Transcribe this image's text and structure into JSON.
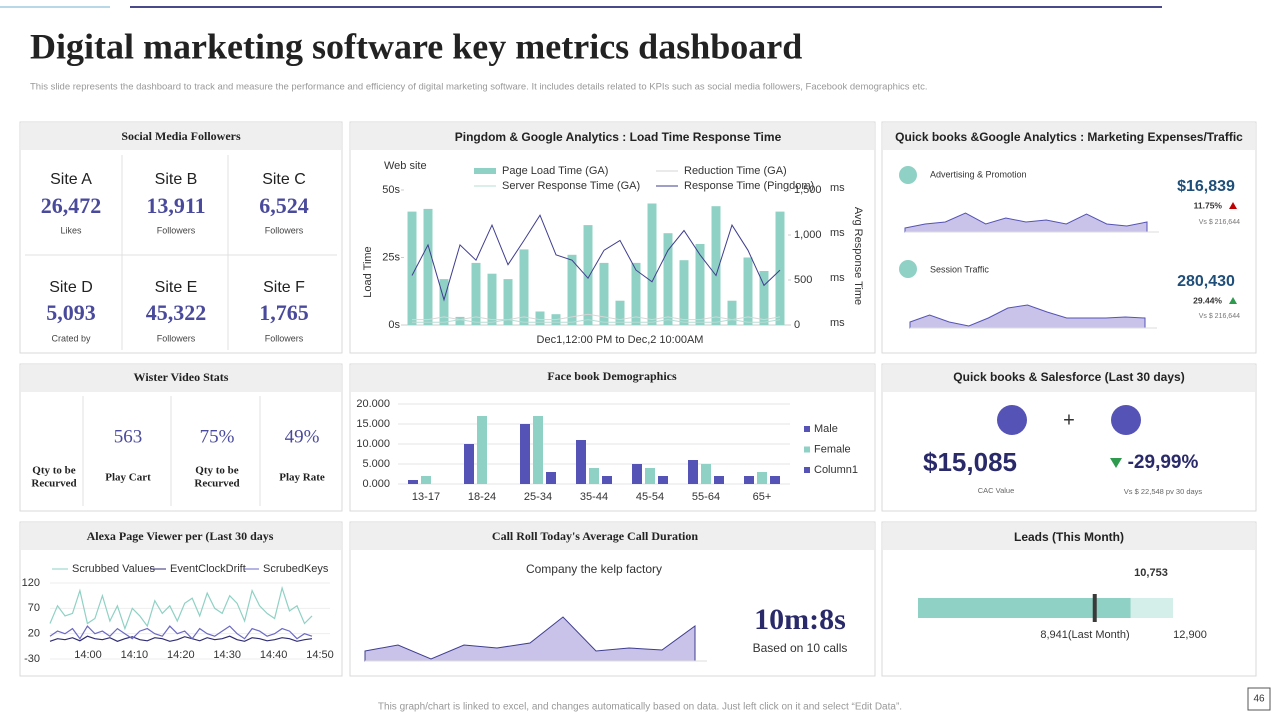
{
  "title": "Digital marketing software key metrics dashboard",
  "subtitle": "This slide represents the dashboard to track and measure the performance and efficiency of digital marketing software. It includes details related to KPIs such as social media followers, Facebook demographics etc.",
  "footer": "This graph/chart is linked to excel, and changes automatically based on data. Just left click on it and select “Edit Data”.",
  "page_number": "46",
  "social_media": {
    "title": "Social Media Followers",
    "sites": [
      {
        "name": "Site A",
        "value": "26,472",
        "metric": "Likes"
      },
      {
        "name": "Site B",
        "value": "13,911",
        "metric": "Followers"
      },
      {
        "name": "Site C",
        "value": "6,524",
        "metric": "Followers"
      },
      {
        "name": "Site D",
        "value": "5,093",
        "metric": "Crated by"
      },
      {
        "name": "Site E",
        "value": "45,322",
        "metric": "Followers"
      },
      {
        "name": "Site F",
        "value": "1,765",
        "metric": "Followers"
      }
    ]
  },
  "video_stats": {
    "title": "Wister Video Stats",
    "items": [
      {
        "label": [
          "Qty to be",
          "Recurved"
        ]
      },
      {
        "value": "563",
        "label": [
          "Play Cart"
        ]
      },
      {
        "value": "75%",
        "label": [
          "Qty to be",
          "Recurved"
        ]
      },
      {
        "value": "49%",
        "label": [
          "Play Rate"
        ]
      }
    ]
  },
  "quickbooks_traffic": {
    "title": "Quick books &Google  Analytics : Marketing Expenses/Traffic",
    "items": [
      {
        "name": "Advertising & Promotion",
        "value": "$16,839",
        "change": "11.75%",
        "compare": "Vs $ 216,644"
      },
      {
        "name": "Session Traffic",
        "value": "280,430",
        "change": "29.44%",
        "compare": "Vs $ 216,644"
      }
    ]
  },
  "salesforce": {
    "title": "Quick books & Salesforce (Last 30 days)",
    "plus": "+",
    "value": "$15,085",
    "value_caption": "CAC Value",
    "change": "-29,99%",
    "compare": "Vs $ 22,548  pv 30 days"
  },
  "call_stats": {
    "value": "10m:8s",
    "caption": "Based on 10 calls"
  },
  "chart_data": [
    {
      "type": "combo",
      "title": "Pingdom  & Google  Analytics : Load Time Response Time",
      "caption": "Web site",
      "ylabel": "Load Time",
      "y2label": "Avg Response Time",
      "xlabel": "Dec1,12:00 PM  to Dec,2 10:00AM",
      "ylim": [
        0,
        50
      ],
      "yticks": [
        {
          "value": 0,
          "label": "0s"
        },
        {
          "value": 25,
          "label": "25s"
        },
        {
          "value": 50,
          "label": "50s"
        }
      ],
      "y2lim": [
        0,
        1500
      ],
      "y2ticks": [
        0,
        500,
        {
          "value": 1000,
          "label": "1,000"
        },
        {
          "value": 1500,
          "label": "1,500"
        }
      ],
      "y2_unit": "ms",
      "series": [
        {
          "name": "Page Load Time (GA)",
          "type": "bar",
          "color": "#8fd1c4",
          "values": [
            42,
            43,
            17,
            3,
            23,
            19,
            17,
            28,
            5,
            4,
            26,
            37,
            23,
            9,
            23,
            45,
            34,
            24,
            30,
            44,
            9,
            25,
            20,
            42
          ]
        },
        {
          "name": "Reduction Time (GA)",
          "type": "line",
          "color": "#d6d6d6",
          "values": [
            2,
            2,
            3,
            2,
            3,
            2,
            2,
            3,
            2,
            2,
            3,
            4,
            3,
            2,
            3,
            2,
            3,
            2,
            2,
            3,
            2,
            3,
            2,
            3
          ]
        },
        {
          "name": "Server Response Time (GA)",
          "type": "line",
          "color": "#b5ddd5",
          "values": [
            1,
            1,
            1,
            2,
            1,
            1,
            2,
            1,
            1,
            1,
            1,
            2,
            1,
            1,
            1,
            1,
            2,
            1,
            1,
            1,
            2,
            1,
            1,
            2
          ]
        },
        {
          "name": "Response Time (Pingdom)",
          "type": "line",
          "axis": "y2",
          "color": "#3f3d8f",
          "values": [
            550,
            890,
            280,
            890,
            720,
            1110,
            670,
            940,
            1220,
            780,
            720,
            520,
            830,
            940,
            610,
            480,
            830,
            1050,
            780,
            550,
            1110,
            830,
            440,
            610
          ]
        }
      ]
    },
    {
      "type": "grouped_bar",
      "title": "Face book Demographics",
      "categories": [
        "13-17",
        "18-24",
        "25-34",
        "35-44",
        "45-54",
        "55-64",
        "65+"
      ],
      "ylim": [
        0,
        20000
      ],
      "yticks": [
        {
          "value": 0,
          "label": "0.000"
        },
        {
          "value": 5000,
          "label": "5.000"
        },
        {
          "value": 10000,
          "label": "10.000"
        },
        {
          "value": 15000,
          "label": "15.000"
        },
        {
          "value": 20000,
          "label": "20.000"
        }
      ],
      "grid": true,
      "series": [
        {
          "name": "Male",
          "color": "#5553b5",
          "values": [
            1000,
            10000,
            15000,
            11000,
            5000,
            6000,
            2000
          ]
        },
        {
          "name": "Female",
          "color": "#8fd1c4",
          "values": [
            2000,
            17000,
            17000,
            4000,
            4000,
            5000,
            3000
          ]
        },
        {
          "name": "Column1",
          "color": "#5553b5",
          "values": [
            null,
            null,
            3000,
            2000,
            2000,
            2000,
            2000
          ]
        }
      ]
    },
    {
      "type": "line",
      "title": "Alexa Page Viewer per (Last 30 days",
      "xticks": [
        "14:00",
        "14:10",
        "14:20",
        "14:30",
        "14:40",
        "14:50"
      ],
      "ylim": [
        -30,
        120
      ],
      "yticks": [
        -30,
        20,
        70,
        120
      ],
      "grid": true,
      "series": [
        {
          "name": "Scrubbed Values",
          "color": "#8fd1c4",
          "values": [
            40,
            75,
            55,
            60,
            105,
            40,
            50,
            95,
            45,
            75,
            30,
            70,
            55,
            35,
            85,
            60,
            75,
            45,
            80,
            90,
            55,
            100,
            70,
            60,
            95,
            80,
            45,
            105,
            75,
            60,
            50,
            110,
            65,
            75,
            40,
            55
          ]
        },
        {
          "name": "EventClockDrift",
          "color": "#2f2d70",
          "values": [
            5,
            10,
            8,
            12,
            6,
            15,
            10,
            8,
            12,
            5,
            10,
            14,
            8,
            6,
            12,
            10,
            5,
            8,
            14,
            10,
            6,
            12,
            8,
            10,
            15,
            8,
            5,
            12,
            10,
            6,
            8,
            12,
            10,
            5,
            8,
            10
          ]
        },
        {
          "name": "ScrubedKeys",
          "color": "#6b69c4",
          "values": [
            15,
            25,
            20,
            30,
            10,
            35,
            20,
            25,
            15,
            30,
            20,
            10,
            25,
            30,
            20,
            15,
            35,
            20,
            25,
            10,
            30,
            20,
            15,
            25,
            35,
            20,
            10,
            30,
            25,
            15,
            20,
            30,
            25,
            10,
            20,
            15
          ]
        }
      ]
    },
    {
      "type": "area",
      "title": "Call Roll Today's Average Call Duration",
      "subtitle": "Company the kelp factory",
      "color": "#c9c3ea",
      "line_color": "#3f3d8f",
      "values": [
        10,
        16,
        2,
        16,
        13,
        18,
        44,
        10,
        13,
        11,
        35
      ]
    },
    {
      "type": "area",
      "color": "#c9c3ea",
      "line_color": "#5553b5",
      "values": [
        4,
        8,
        10,
        19,
        8,
        14,
        10,
        12,
        8,
        18,
        8,
        6,
        10
      ]
    },
    {
      "type": "area",
      "color": "#c9c3ea",
      "line_color": "#5553b5",
      "values": [
        6,
        13,
        6,
        2,
        10,
        20,
        23,
        16,
        10,
        10,
        10,
        11,
        10
      ]
    },
    {
      "type": "bullet",
      "title": "Leads (This Month)",
      "color": "#8fd1c4",
      "value": 10753,
      "value_label": "10,753",
      "target": 8941,
      "target_label": "8,941(Last Month)",
      "xlim": [
        0,
        12900
      ],
      "max_label": "12,900"
    }
  ]
}
